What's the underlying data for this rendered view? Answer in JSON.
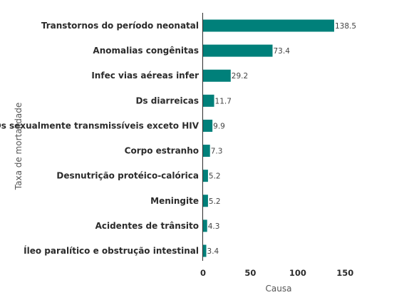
{
  "chart_data": {
    "type": "bar",
    "orientation": "horizontal",
    "categories": [
      "Transtornos do período neonatal",
      "Anomalias congênitas",
      "Infec vias aéreas infer",
      "Ds diarreicas",
      "Ds sexualmente transmissíveis exceto HIV",
      "Corpo estranho",
      "Desnutrição protéico-calórica",
      "Meningite",
      "Acidentes de trânsito",
      "Íleo paralítico e obstrução intestinal"
    ],
    "values": [
      138.5,
      73.4,
      29.2,
      11.7,
      9.9,
      7.3,
      5.2,
      5.2,
      4.3,
      3.4
    ],
    "value_labels": [
      "138.5",
      "73.4",
      "29.2",
      "11.7",
      "9.9",
      "7.3",
      "5.2",
      "5.2",
      "4.3",
      "3.4"
    ],
    "x_ticks": [
      0,
      50,
      100,
      150
    ],
    "xlim": [
      0,
      165
    ],
    "xlabel": "Causa",
    "ylabel": "Taxa de mortalidade",
    "title": "",
    "grid": false,
    "colors": {
      "bar": "#00807a",
      "axis": "#2b2b2b"
    }
  }
}
